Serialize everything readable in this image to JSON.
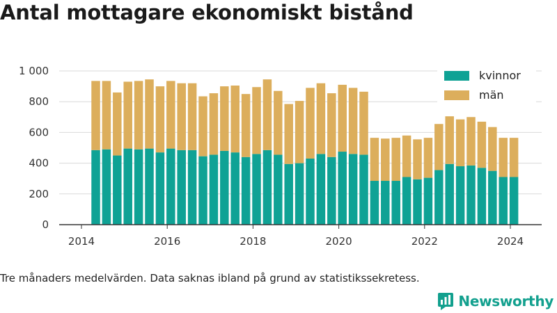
{
  "title": "Antal mottagare ekonomiskt bistånd",
  "note": "Tre månaders medelvärden. Data saknas ibland på grund av statistikssekretess.",
  "brand": {
    "name": "Newsworthy",
    "icon": "newsworthy-logo-icon"
  },
  "colors": {
    "kvinnor": "#0fa295",
    "man": "#dcae5c",
    "grid": "#d9d9d9",
    "axis": "#333333",
    "brand": "#12a08e"
  },
  "chart_data": {
    "type": "bar",
    "stacked": true,
    "x_ticks": [
      "2014",
      "2016",
      "2018",
      "2020",
      "2022",
      "2024"
    ],
    "y_ticks": [
      "0",
      "200",
      "400",
      "600",
      "800",
      "1 000"
    ],
    "ylim": [
      0,
      1000
    ],
    "grid": true,
    "legend_position": "top-right",
    "x": [
      2014.333,
      2014.583,
      2014.833,
      2015.083,
      2015.333,
      2015.583,
      2015.833,
      2016.083,
      2016.333,
      2016.583,
      2016.833,
      2017.083,
      2017.333,
      2017.583,
      2017.833,
      2018.083,
      2018.333,
      2018.583,
      2018.833,
      2019.083,
      2019.333,
      2019.583,
      2019.833,
      2020.083,
      2020.333,
      2020.583,
      2020.833,
      2021.083,
      2021.333,
      2021.583,
      2021.833,
      2022.083,
      2022.333,
      2022.583,
      2022.833,
      2023.083,
      2023.333,
      2023.583,
      2023.833,
      2024.083
    ],
    "series": [
      {
        "name": "kvinnor",
        "values": [
          485,
          490,
          450,
          495,
          490,
          495,
          470,
          495,
          485,
          485,
          445,
          455,
          480,
          470,
          440,
          460,
          485,
          455,
          395,
          400,
          430,
          460,
          440,
          475,
          460,
          455,
          285,
          285,
          285,
          310,
          295,
          305,
          355,
          395,
          380,
          385,
          370,
          350,
          310,
          310
        ]
      },
      {
        "name": "män",
        "values": [
          450,
          445,
          410,
          435,
          445,
          450,
          430,
          440,
          435,
          435,
          390,
          400,
          420,
          435,
          410,
          435,
          460,
          415,
          390,
          405,
          460,
          460,
          415,
          435,
          430,
          410,
          280,
          275,
          280,
          270,
          260,
          260,
          300,
          310,
          305,
          315,
          300,
          285,
          255,
          255
        ]
      }
    ]
  }
}
